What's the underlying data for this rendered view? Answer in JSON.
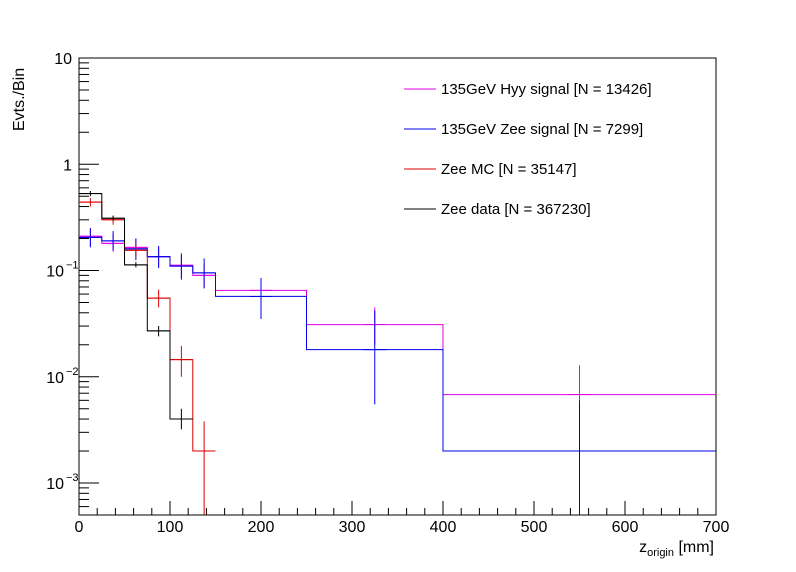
{
  "chart_data": {
    "type": "histogram",
    "ylabel": "Evts./Bin",
    "xlabel_main": "z",
    "xlabel_sub": "origin",
    "xlabel_unit": " [mm]",
    "xlim": [
      0,
      700
    ],
    "ylim": [
      0.0005,
      10
    ],
    "yscale": "log",
    "x_ticks": [
      "0",
      "100",
      "200",
      "300",
      "400",
      "500",
      "600",
      "700"
    ],
    "x_tick_values": [
      0,
      100,
      200,
      300,
      400,
      500,
      600,
      700
    ],
    "y_ticks": [
      {
        "value": 10,
        "base": "10",
        "exp": ""
      },
      {
        "value": 1,
        "base": "1",
        "exp": ""
      },
      {
        "value": 0.1,
        "base": "10",
        "exp": "−1"
      },
      {
        "value": 0.01,
        "base": "10",
        "exp": "−2"
      },
      {
        "value": 0.001,
        "base": "10",
        "exp": "−3"
      }
    ],
    "legend_position": "top-right",
    "series": [
      {
        "name": "135GeV Hyy signal [N = 13426]",
        "color": "#e600e6",
        "edges": [
          0,
          25,
          50,
          75,
          100,
          125,
          150,
          250,
          400,
          700
        ],
        "values": [
          0.21,
          0.18,
          0.165,
          0.135,
          0.112,
          0.09,
          0.065,
          0.031,
          0.0068
        ],
        "errors": [
          {
            "x": 12.5,
            "low": 0.17,
            "high": 0.25
          },
          {
            "x": 37.5,
            "low": 0.15,
            "high": 0.22
          },
          {
            "x": 62.5,
            "low": 0.135,
            "high": 0.2
          },
          {
            "x": 87.5,
            "low": 0.11,
            "high": 0.165
          },
          {
            "x": 112.5,
            "low": 0.085,
            "high": 0.14
          },
          {
            "x": 137.5,
            "low": 0.068,
            "high": 0.115
          },
          {
            "x": 200,
            "low": 0.045,
            "high": 0.085
          },
          {
            "x": 325,
            "low": 0.02,
            "high": 0.045
          },
          {
            "x": 550,
            "low": 0.0025,
            "high": 0.0128
          }
        ]
      },
      {
        "name": "135GeV Zee signal [N = 7299]",
        "color": "#0000ee",
        "edges": [
          0,
          25,
          50,
          75,
          100,
          125,
          150,
          250,
          400,
          700
        ],
        "values": [
          0.205,
          0.19,
          0.16,
          0.135,
          0.11,
          0.095,
          0.057,
          0.018,
          0.002
        ],
        "errors": [
          {
            "x": 12.5,
            "low": 0.165,
            "high": 0.25
          },
          {
            "x": 37.5,
            "low": 0.155,
            "high": 0.235
          },
          {
            "x": 62.5,
            "low": 0.125,
            "high": 0.2
          },
          {
            "x": 87.5,
            "low": 0.105,
            "high": 0.17
          },
          {
            "x": 112.5,
            "low": 0.082,
            "high": 0.145
          },
          {
            "x": 137.5,
            "low": 0.068,
            "high": 0.13
          },
          {
            "x": 200,
            "low": 0.035,
            "high": 0.085
          },
          {
            "x": 325,
            "low": 0.0055,
            "high": 0.042
          },
          {
            "x": 550,
            "low": 0.0005,
            "high": 0.006
          }
        ]
      },
      {
        "name": "Zee MC [N = 35147]",
        "color": "#dd0000",
        "edges": [
          0,
          25,
          50,
          75,
          100,
          125,
          140,
          150
        ],
        "values": [
          0.44,
          0.3,
          0.155,
          0.055,
          0.0145,
          0.002,
          0.002
        ],
        "errors": [
          {
            "x": 12.5,
            "low": 0.4,
            "high": 0.48
          },
          {
            "x": 37.5,
            "low": 0.27,
            "high": 0.33
          },
          {
            "x": 62.5,
            "low": 0.135,
            "high": 0.175
          },
          {
            "x": 87.5,
            "low": 0.045,
            "high": 0.066
          },
          {
            "x": 112.5,
            "low": 0.01,
            "high": 0.0195
          },
          {
            "x": 137.5,
            "low": 0.0005,
            "high": 0.0038
          }
        ]
      },
      {
        "name": "Zee data [N = 367230]",
        "color": "#000000",
        "edges": [
          0,
          25,
          50,
          75,
          100,
          125
        ],
        "values": [
          0.53,
          0.31,
          0.113,
          0.027,
          0.004
        ],
        "errors": [
          {
            "x": 12.5,
            "low": 0.5,
            "high": 0.56
          },
          {
            "x": 37.5,
            "low": 0.295,
            "high": 0.325
          },
          {
            "x": 62.5,
            "low": 0.107,
            "high": 0.12
          },
          {
            "x": 87.5,
            "low": 0.024,
            "high": 0.03
          },
          {
            "x": 112.5,
            "low": 0.0032,
            "high": 0.005
          }
        ]
      }
    ]
  }
}
